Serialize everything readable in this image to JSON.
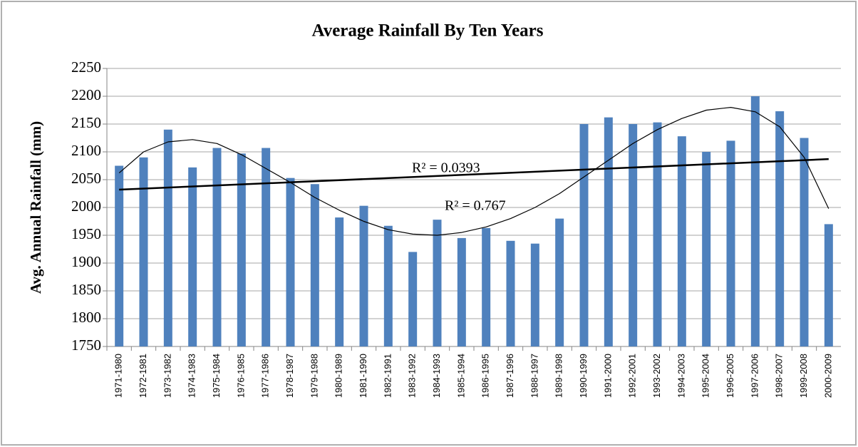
{
  "chart_data": {
    "type": "bar",
    "title": "Average Rainfall By Ten Years",
    "y_label": "Avg. Annual Rainfall (mm)",
    "categories": [
      "1971-1980",
      "1972-1981",
      "1973-1982",
      "1974-1983",
      "1975-1984",
      "1976-1985",
      "1977-1986",
      "1978-1987",
      "1979-1988",
      "1980-1989",
      "1981-1990",
      "1982-1991",
      "1983-1992",
      "1984-1993",
      "1985-1994",
      "1986-1995",
      "1987-1996",
      "1988-1997",
      "1989-1998",
      "1990-1999",
      "1991-2000",
      "1992-2001",
      "1993-2002",
      "1994-2003",
      "1995-2004",
      "1996-2005",
      "1997-2006",
      "1998-2007",
      "1999-2008",
      "2000-2009"
    ],
    "values": [
      2075,
      2090,
      2140,
      2072,
      2107,
      2097,
      2107,
      2053,
      2042,
      1982,
      2003,
      1967,
      1920,
      1978,
      1945,
      1963,
      1940,
      1935,
      1980,
      2150,
      2162,
      2150,
      2153,
      2128,
      2100,
      2120,
      2200,
      2173,
      2125,
      1970
    ],
    "color": "#4f81bd",
    "ylim": [
      1750,
      2250
    ],
    "yticks": [
      1750,
      1800,
      1850,
      1900,
      1950,
      2000,
      2050,
      2100,
      2150,
      2200,
      2250
    ],
    "grid": true,
    "trend_linear": {
      "label": "R² = 0.0393",
      "values": [
        2032,
        2087
      ]
    },
    "trend_poly": {
      "label": "R² = 0.767",
      "values": [
        2062,
        2100,
        2118,
        2122,
        2115,
        2095,
        2070,
        2045,
        2018,
        1995,
        1975,
        1960,
        1952,
        1950,
        1955,
        1965,
        1980,
        2000,
        2025,
        2055,
        2085,
        2115,
        2140,
        2160,
        2175,
        2180,
        2172,
        2145,
        2090,
        1998
      ]
    }
  }
}
